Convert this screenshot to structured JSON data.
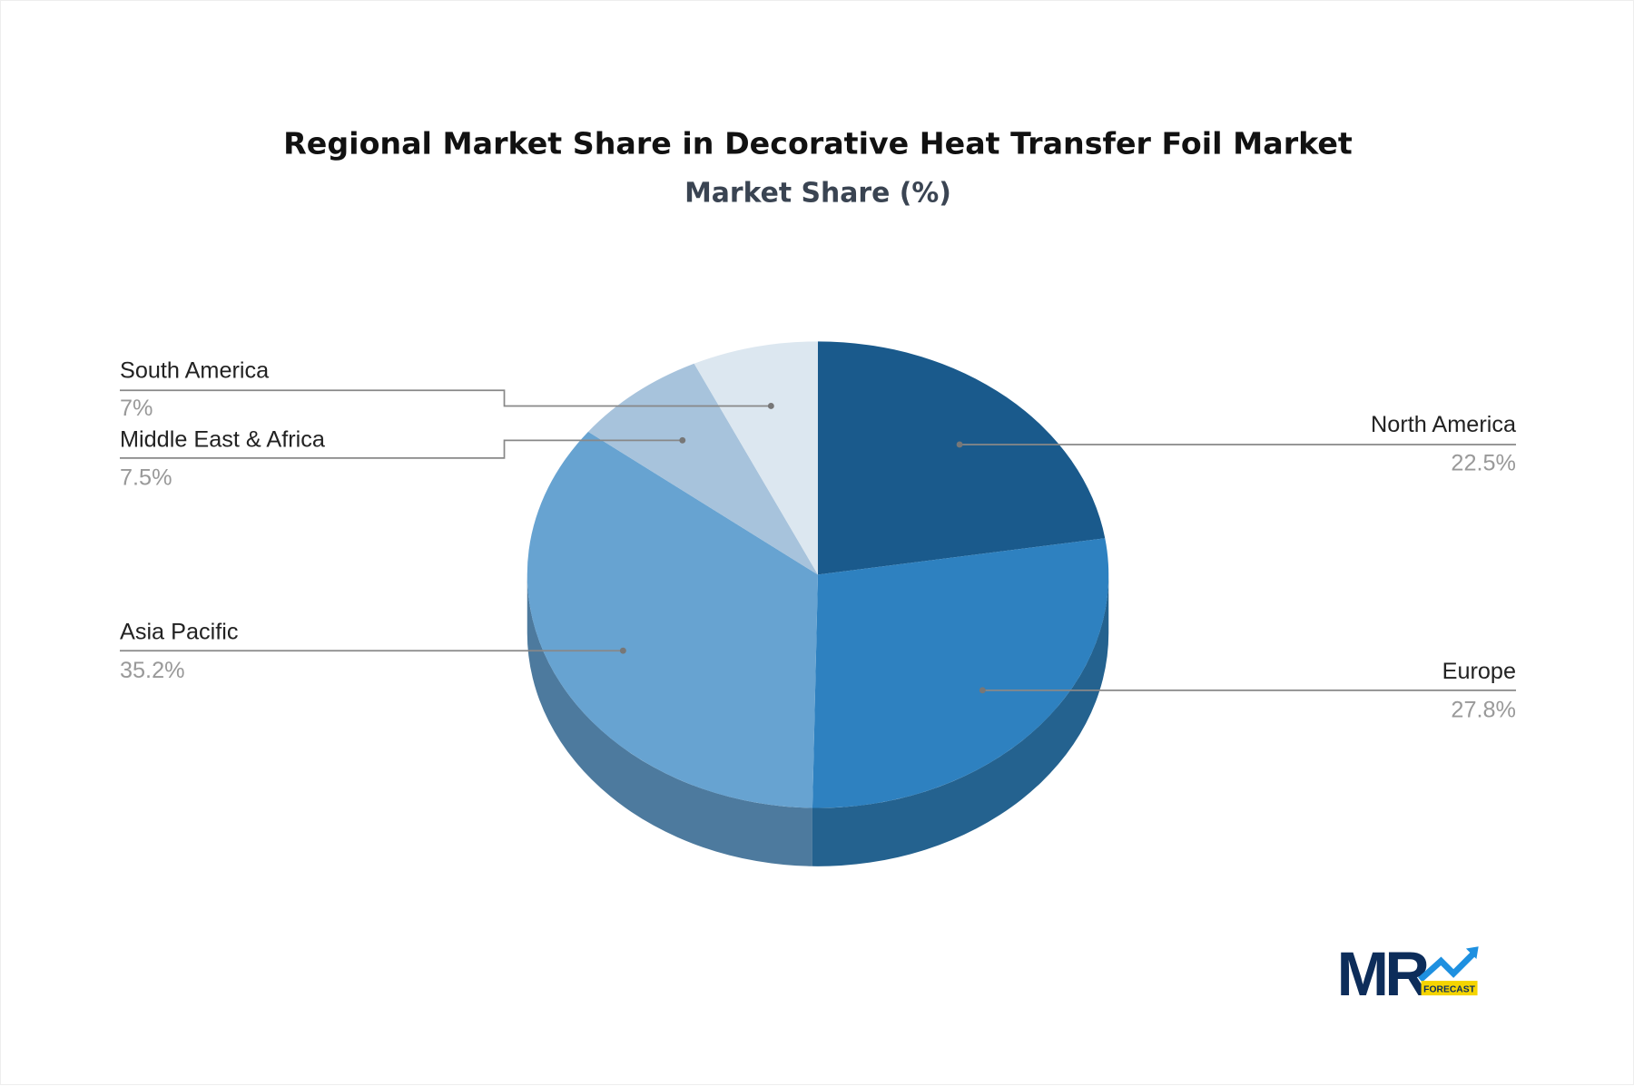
{
  "chart_data": {
    "type": "pie",
    "title": "Regional Market Share in Decorative Heat Transfer Foil Market",
    "subtitle": "Market Share (%)",
    "style": "3d",
    "slices": [
      {
        "label": "North America",
        "value": 22.5,
        "display": "22.5%",
        "color": "#1a5a8c",
        "side_color": "#174d78"
      },
      {
        "label": "Europe",
        "value": 27.8,
        "display": "27.8%",
        "color": "#2e81c0",
        "side_color": "#24628f"
      },
      {
        "label": "Asia Pacific",
        "value": 35.2,
        "display": "35.2%",
        "color": "#67a3d1",
        "side_color": "#4d7a9e"
      },
      {
        "label": "Middle East & Africa",
        "value": 7.5,
        "display": "7.5%",
        "color": "#a7c3dc",
        "side_color": "#7f97ad"
      },
      {
        "label": "South America",
        "value": 7,
        "display": "7%",
        "color": "#dce7f0",
        "side_color": "#b3c0cc"
      }
    ]
  },
  "logo": {
    "text": "MR",
    "tag": "FORECAST",
    "colors": {
      "mr": "#0d2d5a",
      "arrow": "#1e90e0",
      "tag_bg": "#f5d400"
    }
  }
}
